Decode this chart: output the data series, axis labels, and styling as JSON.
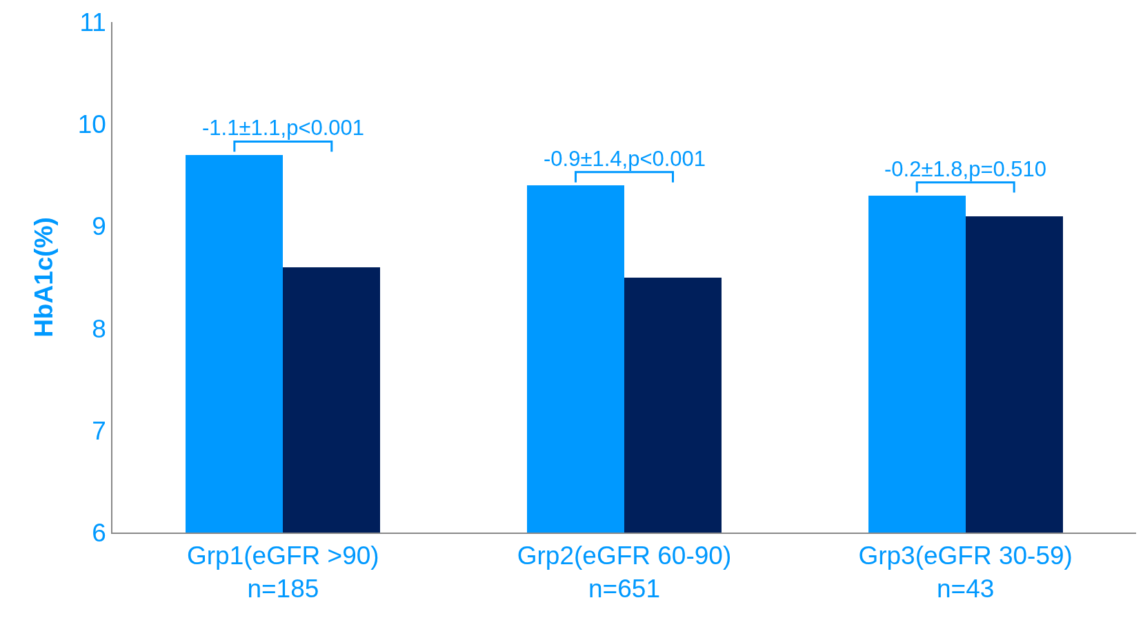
{
  "chart_data": {
    "type": "bar",
    "ylabel": "HbA1c(%)",
    "categories": [
      "Grp1(eGFR >90)\nn=185",
      "Grp2(eGFR 60-90)\nn=651",
      "Grp3(eGFR 30-59)\nn=43"
    ],
    "series": [
      {
        "color": "#0099ff",
        "values": [
          9.7,
          9.4,
          9.3
        ]
      },
      {
        "color": "#001f5b",
        "values": [
          8.6,
          8.5,
          9.1
        ]
      }
    ],
    "ylim": [
      6,
      11
    ],
    "yticks": [
      6,
      7,
      8,
      9,
      10,
      11
    ],
    "grid": false,
    "annotations": [
      "-1.1±1.1,p<0.001",
      "-0.9±1.4,p<0.001",
      "-0.2±1.8,p=0.510"
    ]
  }
}
